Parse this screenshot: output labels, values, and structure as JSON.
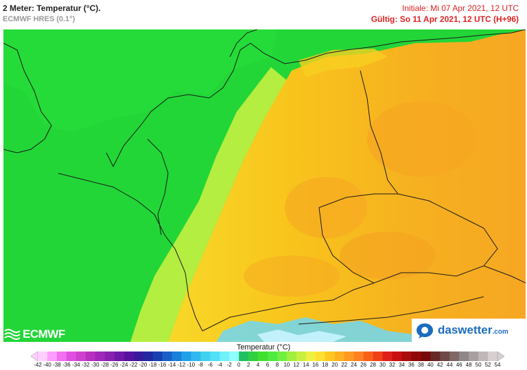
{
  "header": {
    "title": "2 Meter: Temperatur (°C).",
    "model": "ECMWF HRES (0.1°)",
    "init": "Initiale: Mi 07 Apr 2021, 12 UTC",
    "valid": "Gültig: So 11 Apr 2021, 12 UTC (H+96)"
  },
  "logos": {
    "left": "ECMWF",
    "right_main": "daswetter",
    "right_tld": ".com"
  },
  "legend": {
    "title": "Temperatur (°C)",
    "ticks": [
      "-42",
      "-40",
      "-38",
      "-36",
      "-34",
      "-32",
      "-30",
      "-28",
      "-26",
      "-24",
      "-22",
      "-20",
      "-18",
      "-16",
      "-14",
      "-12",
      "-10",
      "-8",
      "-6",
      "-4",
      "-2",
      "0",
      "2",
      "4",
      "6",
      "8",
      "10",
      "12",
      "14",
      "16",
      "18",
      "20",
      "22",
      "24",
      "26",
      "28",
      "30",
      "32",
      "34",
      "36",
      "38",
      "40",
      "42",
      "44",
      "46",
      "48",
      "50",
      "52",
      "54"
    ],
    "colors": [
      "#ffd0ff",
      "#ff9cff",
      "#f070f0",
      "#e050e0",
      "#d040d0",
      "#b830c0",
      "#a028b8",
      "#8820b0",
      "#7018a8",
      "#5810a0",
      "#3a189a",
      "#2228a0",
      "#1840b0",
      "#1860c8",
      "#1880d8",
      "#20a0e8",
      "#30b8f0",
      "#40d0f0",
      "#50e0f8",
      "#70f0f8",
      "#90ffff",
      "#20c060",
      "#30d040",
      "#40e030",
      "#50ea40",
      "#70f040",
      "#a0f040",
      "#c8f040",
      "#f0f040",
      "#ffe030",
      "#ffc820",
      "#ffb020",
      "#ff9820",
      "#ff8020",
      "#f86018",
      "#f04018",
      "#e02018",
      "#c81010",
      "#a80c0c",
      "#900808",
      "#780808",
      "#682828",
      "#704848",
      "#806868",
      "#908888",
      "#a8a0a0",
      "#c0b8b8",
      "#d8d0d0"
    ]
  },
  "colors": {
    "land_green": "#22d637",
    "land_green_dark": "#1ecb35",
    "sea_green": "#1fd22f",
    "warm_yellow": "#f8c41c",
    "warm_orange": "#f6a722",
    "alps_blue": "#6fd7f4",
    "border": "#1a1a1a"
  }
}
